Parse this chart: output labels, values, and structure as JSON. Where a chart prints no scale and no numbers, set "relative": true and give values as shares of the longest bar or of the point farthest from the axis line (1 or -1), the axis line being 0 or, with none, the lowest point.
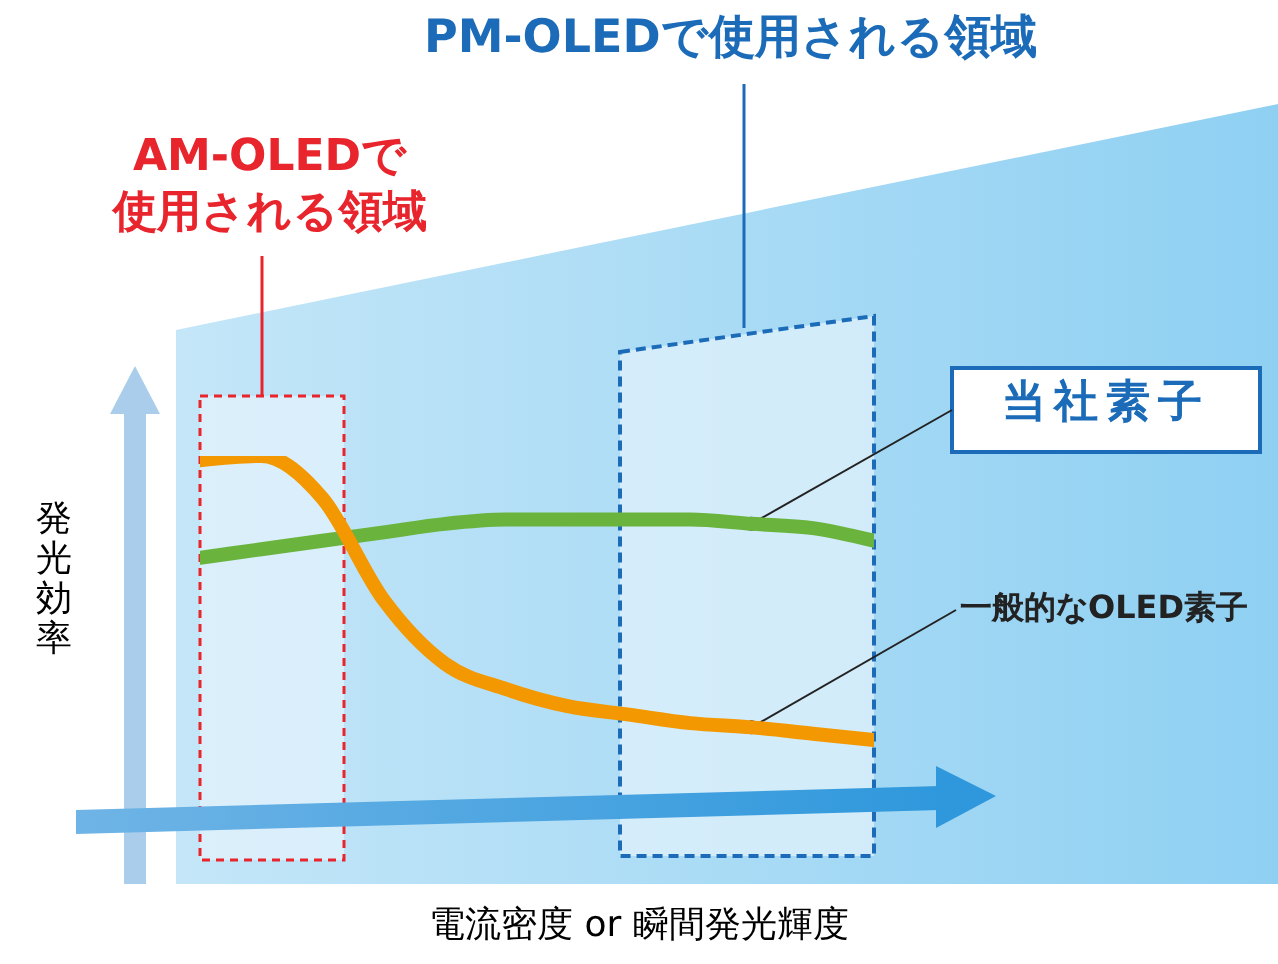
{
  "chart_data": {
    "type": "line",
    "relative": true,
    "xlabel": "電流密度 or 瞬間発光輝度",
    "ylabel": "発光効率",
    "categories": [
      null,
      null,
      null,
      null,
      null,
      null,
      null,
      null,
      null,
      null,
      null,
      null
    ],
    "series": [
      {
        "name": "当社素子",
        "color": "#6ab43e",
        "values": [
          0.76,
          0.78,
          0.8,
          0.82,
          0.84,
          0.85,
          0.85,
          0.85,
          0.85,
          0.84,
          0.83,
          0.8
        ]
      },
      {
        "name": "一般的なOLED素子",
        "color": "#f39800",
        "values": [
          0.99,
          1,
          0.9,
          0.66,
          0.51,
          0.45,
          0.41,
          0.39,
          0.37,
          0.36,
          0.345,
          0.33
        ]
      }
    ],
    "annotations": [
      "AM-OLEDで",
      "使用される領域",
      "PM-OLEDで使用される領域"
    ]
  }
}
